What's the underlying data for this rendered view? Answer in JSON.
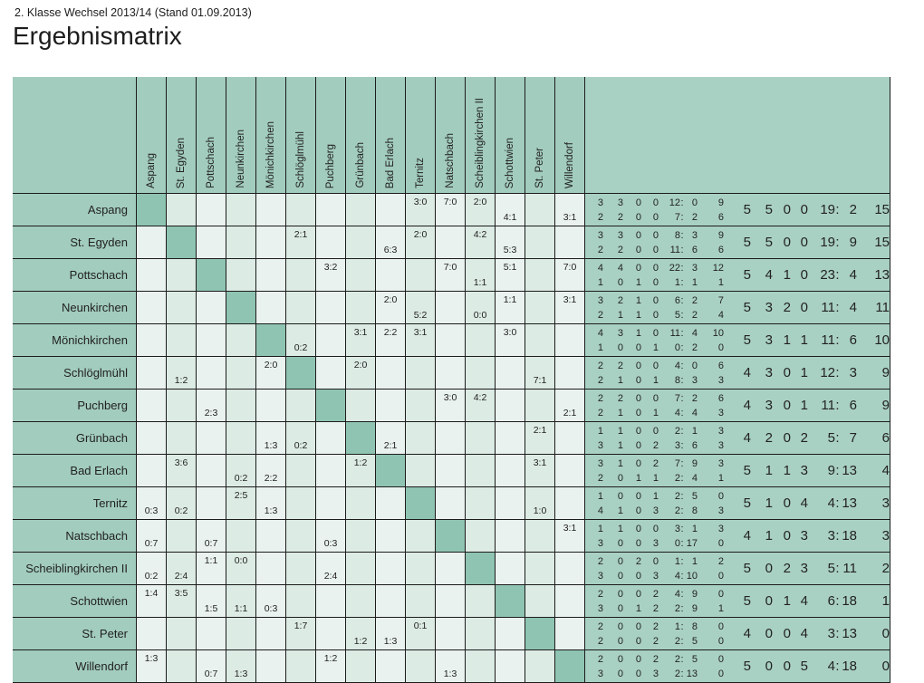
{
  "page": {
    "subtitle": "2. Klasse Wechsel 2013/14 (Stand 01.09.2013)",
    "title": "Ergebnismatrix"
  },
  "colors": {
    "header_green": "#a2ccbe",
    "diagonal_green": "#8fc4b2",
    "cell_light": "#e9f2ee",
    "cell_dark": "#dcebe4",
    "stats_green": "#a9d1c3",
    "grid_line": "#1c1c1c",
    "text": "#222222"
  },
  "matrix": {
    "teams": [
      "Aspang",
      "St. Egyden",
      "Pottschach",
      "Neunkirchen",
      "Mönichkirchen",
      "Schlöglmühl",
      "Puchberg",
      "Grünbach",
      "Bad Erlach",
      "Ternitz",
      "Natschbach",
      "Scheiblingkirchen II",
      "Schottwien",
      "St. Peter",
      "Willendorf"
    ],
    "stat_order": [
      "games",
      "wins",
      "draws",
      "losses",
      "goals_for",
      "goals_against",
      "points"
    ],
    "rows": [
      {
        "team": "Aspang",
        "results": [
          [
            9,
            "3:0",
            "t"
          ],
          [
            10,
            "7:0",
            "t"
          ],
          [
            11,
            "2:0",
            "t"
          ],
          [
            12,
            "4:1",
            "b"
          ],
          [
            14,
            "3:1",
            "b"
          ]
        ],
        "line1": [
          3,
          3,
          0,
          0,
          12,
          0,
          9
        ],
        "line2": [
          2,
          2,
          0,
          0,
          7,
          2,
          6
        ],
        "total": [
          5,
          5,
          0,
          0,
          19,
          2,
          15
        ]
      },
      {
        "team": "St. Egyden",
        "results": [
          [
            5,
            "2:1",
            "t"
          ],
          [
            8,
            "6:3",
            "b"
          ],
          [
            9,
            "2:0",
            "t"
          ],
          [
            11,
            "4:2",
            "t"
          ],
          [
            12,
            "5:3",
            "b"
          ]
        ],
        "line1": [
          3,
          3,
          0,
          0,
          8,
          3,
          9
        ],
        "line2": [
          2,
          2,
          0,
          0,
          11,
          6,
          6
        ],
        "total": [
          5,
          5,
          0,
          0,
          19,
          9,
          15
        ]
      },
      {
        "team": "Pottschach",
        "results": [
          [
            6,
            "3:2",
            "t"
          ],
          [
            10,
            "7:0",
            "t"
          ],
          [
            11,
            "1:1",
            "b"
          ],
          [
            12,
            "5:1",
            "t"
          ],
          [
            14,
            "7:0",
            "t"
          ]
        ],
        "line1": [
          4,
          4,
          0,
          0,
          22,
          3,
          12
        ],
        "line2": [
          1,
          0,
          1,
          0,
          1,
          1,
          1
        ],
        "total": [
          5,
          4,
          1,
          0,
          23,
          4,
          13
        ]
      },
      {
        "team": "Neunkirchen",
        "results": [
          [
            8,
            "2:0",
            "t"
          ],
          [
            9,
            "5:2",
            "b"
          ],
          [
            11,
            "0:0",
            "b"
          ],
          [
            12,
            "1:1",
            "t"
          ],
          [
            14,
            "3:1",
            "t"
          ]
        ],
        "line1": [
          3,
          2,
          1,
          0,
          6,
          2,
          7
        ],
        "line2": [
          2,
          1,
          1,
          0,
          5,
          2,
          4
        ],
        "total": [
          5,
          3,
          2,
          0,
          11,
          4,
          11
        ]
      },
      {
        "team": "Mönichkirchen",
        "results": [
          [
            5,
            "0:2",
            "b"
          ],
          [
            7,
            "3:1",
            "t"
          ],
          [
            8,
            "2:2",
            "t"
          ],
          [
            9,
            "3:1",
            "t"
          ],
          [
            12,
            "3:0",
            "t"
          ]
        ],
        "line1": [
          4,
          3,
          1,
          0,
          11,
          4,
          10
        ],
        "line2": [
          1,
          0,
          0,
          1,
          0,
          2,
          0
        ],
        "total": [
          5,
          3,
          1,
          1,
          11,
          6,
          10
        ]
      },
      {
        "team": "Schlöglmühl",
        "results": [
          [
            1,
            "1:2",
            "b"
          ],
          [
            4,
            "2:0",
            "t"
          ],
          [
            7,
            "2:0",
            "t"
          ],
          [
            13,
            "7:1",
            "b"
          ]
        ],
        "line1": [
          2,
          2,
          0,
          0,
          4,
          0,
          6
        ],
        "line2": [
          2,
          1,
          0,
          1,
          8,
          3,
          3
        ],
        "total": [
          4,
          3,
          0,
          1,
          12,
          3,
          9
        ]
      },
      {
        "team": "Puchberg",
        "results": [
          [
            2,
            "2:3",
            "b"
          ],
          [
            10,
            "3:0",
            "t"
          ],
          [
            11,
            "4:2",
            "t"
          ],
          [
            14,
            "2:1",
            "b"
          ]
        ],
        "line1": [
          2,
          2,
          0,
          0,
          7,
          2,
          6
        ],
        "line2": [
          2,
          1,
          0,
          1,
          4,
          4,
          3
        ],
        "total": [
          4,
          3,
          0,
          1,
          11,
          6,
          9
        ]
      },
      {
        "team": "Grünbach",
        "results": [
          [
            4,
            "1:3",
            "b"
          ],
          [
            5,
            "0:2",
            "b"
          ],
          [
            8,
            "2:1",
            "b"
          ],
          [
            13,
            "2:1",
            "t"
          ]
        ],
        "line1": [
          1,
          1,
          0,
          0,
          2,
          1,
          3
        ],
        "line2": [
          3,
          1,
          0,
          2,
          3,
          6,
          3
        ],
        "total": [
          4,
          2,
          0,
          2,
          5,
          7,
          6
        ]
      },
      {
        "team": "Bad Erlach",
        "results": [
          [
            1,
            "3:6",
            "t"
          ],
          [
            3,
            "0:2",
            "b"
          ],
          [
            4,
            "2:2",
            "b"
          ],
          [
            7,
            "1:2",
            "t"
          ],
          [
            13,
            "3:1",
            "t"
          ]
        ],
        "line1": [
          3,
          1,
          0,
          2,
          7,
          9,
          3
        ],
        "line2": [
          2,
          0,
          1,
          1,
          2,
          4,
          1
        ],
        "total": [
          5,
          1,
          1,
          3,
          9,
          13,
          4
        ]
      },
      {
        "team": "Ternitz",
        "results": [
          [
            0,
            "0:3",
            "b"
          ],
          [
            1,
            "0:2",
            "b"
          ],
          [
            3,
            "2:5",
            "t"
          ],
          [
            4,
            "1:3",
            "b"
          ],
          [
            13,
            "1:0",
            "b"
          ]
        ],
        "line1": [
          1,
          0,
          0,
          1,
          2,
          5,
          0
        ],
        "line2": [
          4,
          1,
          0,
          3,
          2,
          8,
          3
        ],
        "total": [
          5,
          1,
          0,
          4,
          4,
          13,
          3
        ]
      },
      {
        "team": "Natschbach",
        "results": [
          [
            0,
            "0:7",
            "b"
          ],
          [
            2,
            "0:7",
            "b"
          ],
          [
            6,
            "0:3",
            "b"
          ],
          [
            14,
            "3:1",
            "t"
          ]
        ],
        "line1": [
          1,
          1,
          0,
          0,
          3,
          1,
          3
        ],
        "line2": [
          3,
          0,
          0,
          3,
          0,
          17,
          0
        ],
        "total": [
          4,
          1,
          0,
          3,
          3,
          18,
          3
        ]
      },
      {
        "team": "Scheiblingkirchen II",
        "results": [
          [
            0,
            "0:2",
            "b"
          ],
          [
            1,
            "2:4",
            "b"
          ],
          [
            2,
            "1:1",
            "t"
          ],
          [
            3,
            "0:0",
            "t"
          ],
          [
            6,
            "2:4",
            "b"
          ]
        ],
        "line1": [
          2,
          0,
          2,
          0,
          1,
          1,
          2
        ],
        "line2": [
          3,
          0,
          0,
          3,
          4,
          10,
          0
        ],
        "total": [
          5,
          0,
          2,
          3,
          5,
          11,
          2
        ]
      },
      {
        "team": "Schottwien",
        "results": [
          [
            0,
            "1:4",
            "t"
          ],
          [
            1,
            "3:5",
            "t"
          ],
          [
            2,
            "1:5",
            "b"
          ],
          [
            3,
            "1:1",
            "b"
          ],
          [
            4,
            "0:3",
            "b"
          ]
        ],
        "line1": [
          2,
          0,
          0,
          2,
          4,
          9,
          0
        ],
        "line2": [
          3,
          0,
          1,
          2,
          2,
          9,
          1
        ],
        "total": [
          5,
          0,
          1,
          4,
          6,
          18,
          1
        ]
      },
      {
        "team": "St. Peter",
        "results": [
          [
            5,
            "1:7",
            "t"
          ],
          [
            7,
            "1:2",
            "b"
          ],
          [
            8,
            "1:3",
            "b"
          ],
          [
            9,
            "0:1",
            "t"
          ]
        ],
        "line1": [
          2,
          0,
          0,
          2,
          1,
          8,
          0
        ],
        "line2": [
          2,
          0,
          0,
          2,
          2,
          5,
          0
        ],
        "total": [
          4,
          0,
          0,
          4,
          3,
          13,
          0
        ]
      },
      {
        "team": "Willendorf",
        "results": [
          [
            0,
            "1:3",
            "t"
          ],
          [
            2,
            "0:7",
            "b"
          ],
          [
            3,
            "1:3",
            "b"
          ],
          [
            6,
            "1:2",
            "t"
          ],
          [
            10,
            "1:3",
            "b"
          ]
        ],
        "line1": [
          2,
          0,
          0,
          2,
          2,
          5,
          0
        ],
        "line2": [
          3,
          0,
          0,
          3,
          2,
          13,
          0
        ],
        "total": [
          5,
          0,
          0,
          5,
          4,
          18,
          0
        ]
      }
    ]
  }
}
